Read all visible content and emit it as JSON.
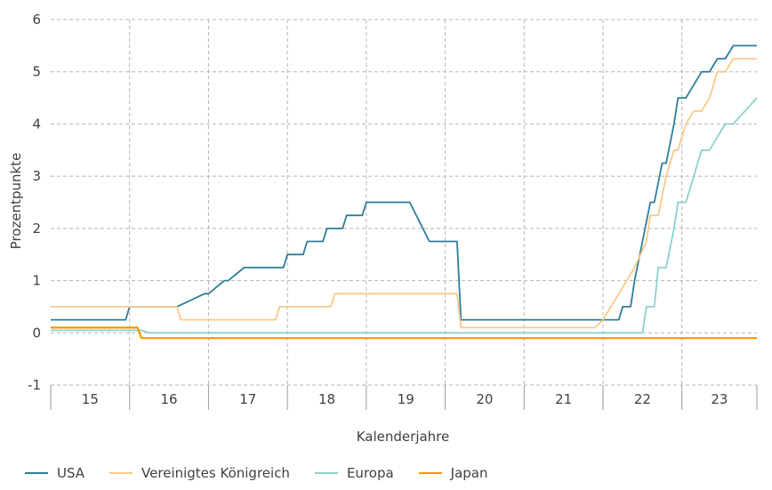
{
  "chart_data": {
    "type": "line",
    "xlabel": "Kalenderjahre",
    "ylabel": "Prozentpunkte",
    "x_range": [
      2015.0,
      2023.95
    ],
    "ylim": [
      -1,
      6
    ],
    "yticks": [
      -1,
      0,
      1,
      2,
      3,
      4,
      5,
      6
    ],
    "categories": [
      "15",
      "16",
      "17",
      "18",
      "19",
      "20",
      "21",
      "22",
      "23"
    ],
    "category_starts": [
      2015,
      2016,
      2017,
      2018,
      2019,
      2020,
      2021,
      2022,
      2023
    ],
    "grid": true,
    "legend": "bottom",
    "series": [
      {
        "name": "USA",
        "color": "#2E7D99",
        "x": [
          2015.0,
          2015.95,
          2016.0,
          2016.6,
          2016.95,
          2017.0,
          2017.2,
          2017.25,
          2017.45,
          2017.5,
          2017.95,
          2018.0,
          2018.2,
          2018.25,
          2018.45,
          2018.5,
          2018.7,
          2018.75,
          2018.95,
          2019.0,
          2019.5,
          2019.55,
          2019.8,
          2019.85,
          2020.15,
          2020.2,
          2021.95,
          2022.2,
          2022.25,
          2022.35,
          2022.4,
          2022.5,
          2022.6,
          2022.65,
          2022.75,
          2022.8,
          2022.9,
          2022.95,
          2023.05,
          2023.15,
          2023.25,
          2023.35,
          2023.45,
          2023.55,
          2023.65,
          2023.7,
          2023.95
        ],
        "y": [
          0.25,
          0.25,
          0.5,
          0.5,
          0.75,
          0.75,
          1.0,
          1.0,
          1.25,
          1.25,
          1.25,
          1.5,
          1.5,
          1.75,
          1.75,
          2.0,
          2.0,
          2.25,
          2.25,
          2.5,
          2.5,
          2.5,
          1.75,
          1.75,
          1.75,
          0.25,
          0.25,
          0.25,
          0.5,
          0.5,
          1.0,
          1.75,
          2.5,
          2.5,
          3.25,
          3.25,
          4.0,
          4.5,
          4.5,
          4.75,
          5.0,
          5.0,
          5.25,
          5.25,
          5.5,
          5.5,
          5.5
        ]
      },
      {
        "name": "Vereinigtes Königreich",
        "color": "#F9C98A",
        "x": [
          2015.0,
          2016.6,
          2016.65,
          2017.85,
          2017.9,
          2018.55,
          2018.6,
          2020.15,
          2020.2,
          2021.9,
          2022.0,
          2022.1,
          2022.2,
          2022.3,
          2022.4,
          2022.55,
          2022.6,
          2022.7,
          2022.8,
          2022.9,
          2022.95,
          2023.05,
          2023.15,
          2023.25,
          2023.35,
          2023.45,
          2023.55,
          2023.65,
          2023.7,
          2023.95
        ],
        "y": [
          0.5,
          0.5,
          0.25,
          0.25,
          0.5,
          0.5,
          0.75,
          0.75,
          0.1,
          0.1,
          0.25,
          0.5,
          0.75,
          1.0,
          1.25,
          1.75,
          2.25,
          2.25,
          3.0,
          3.5,
          3.5,
          4.0,
          4.25,
          4.25,
          4.5,
          5.0,
          5.0,
          5.25,
          5.25,
          5.25
        ]
      },
      {
        "name": "Europa",
        "color": "#8FD0CC",
        "x": [
          2015.0,
          2016.15,
          2016.25,
          2022.5,
          2022.55,
          2022.65,
          2022.7,
          2022.8,
          2022.9,
          2022.95,
          2023.05,
          2023.15,
          2023.25,
          2023.35,
          2023.45,
          2023.55,
          2023.65,
          2023.95
        ],
        "y": [
          0.05,
          0.05,
          0.0,
          0.0,
          0.5,
          0.5,
          1.25,
          1.25,
          2.0,
          2.5,
          2.5,
          3.0,
          3.5,
          3.5,
          3.75,
          4.0,
          4.0,
          4.5
        ]
      },
      {
        "name": "Japan",
        "color": "#F29A00",
        "x": [
          2015.0,
          2016.1,
          2016.15,
          2023.95
        ],
        "y": [
          0.1,
          0.1,
          -0.1,
          -0.1
        ]
      }
    ]
  }
}
